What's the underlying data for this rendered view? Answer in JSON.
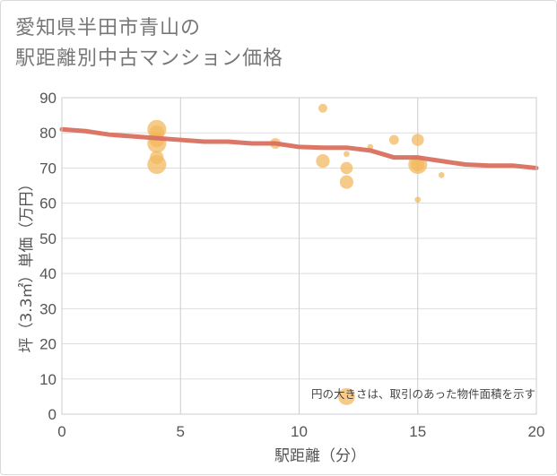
{
  "title": "愛知県半田市青山の\n駅距離別中古マンション価格",
  "colors": {
    "bubble": "#f2b75b",
    "line": "#d9705f",
    "grid": "#dddddd",
    "text": "#555555"
  },
  "chart_data": {
    "type": "scatter",
    "title": "愛知県半田市青山の\n駅距離別中古マンション価格",
    "xlabel": "駅距離（分）",
    "ylabel": "坪（3.3㎡）単価（万円）",
    "xlim": [
      0,
      20
    ],
    "ylim": [
      0,
      90
    ],
    "xticks": [
      "0",
      "5",
      "10",
      "15",
      "20"
    ],
    "yticks": [
      "0",
      "10",
      "20",
      "30",
      "40",
      "50",
      "60",
      "70",
      "80",
      "90"
    ],
    "grid": true,
    "note": "円の大きさは、取引のあった物件面積を示す",
    "bubbles": [
      {
        "x": 4,
        "y": 81,
        "size": 5
      },
      {
        "x": 4,
        "y": 77,
        "size": 5
      },
      {
        "x": 4,
        "y": 71,
        "size": 5
      },
      {
        "x": 4,
        "y": 80,
        "size": 3
      },
      {
        "x": 4,
        "y": 78,
        "size": 3
      },
      {
        "x": 4,
        "y": 73,
        "size": 2.5
      },
      {
        "x": 9,
        "y": 77,
        "size": 1.5
      },
      {
        "x": 11,
        "y": 87,
        "size": 1
      },
      {
        "x": 11,
        "y": 72,
        "size": 2.5
      },
      {
        "x": 12,
        "y": 74,
        "size": 0.4
      },
      {
        "x": 12,
        "y": 70,
        "size": 2
      },
      {
        "x": 12,
        "y": 66,
        "size": 2.5
      },
      {
        "x": 12,
        "y": 5,
        "size": 4
      },
      {
        "x": 13,
        "y": 76,
        "size": 0.4
      },
      {
        "x": 14,
        "y": 78,
        "size": 1.2
      },
      {
        "x": 15,
        "y": 78,
        "size": 2
      },
      {
        "x": 15,
        "y": 71,
        "size": 5
      },
      {
        "x": 15,
        "y": 71,
        "size": 2.5
      },
      {
        "x": 15,
        "y": 61,
        "size": 0.4
      },
      {
        "x": 16,
        "y": 68,
        "size": 0.4
      }
    ],
    "series": [
      {
        "x": [
          0,
          1,
          2,
          3,
          4,
          5,
          6,
          7,
          8,
          9,
          10,
          11,
          12,
          13,
          14,
          15,
          16,
          17,
          18,
          19,
          20
        ],
        "values": [
          81,
          80.5,
          79.5,
          79,
          78.5,
          78,
          77.5,
          77.5,
          77,
          77,
          76,
          75.8,
          75.8,
          75,
          73,
          73,
          72,
          71,
          70.7,
          70.7,
          70
        ]
      }
    ]
  }
}
